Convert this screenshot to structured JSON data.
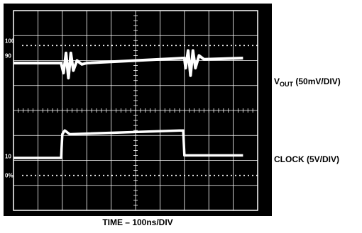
{
  "chart_data": {
    "type": "line",
    "title": "",
    "xlabel": "TIME – 100ns/DIV",
    "graticule": {
      "x_divisions": 10,
      "y_divisions": 8,
      "markers": [
        "100",
        "90",
        "10",
        "0%"
      ]
    },
    "colors": {
      "screen_background": "#000000",
      "grid": "#ffffff",
      "trace": "#ffffff"
    },
    "series": [
      {
        "name": "VOUT (50mV/DIV)",
        "units": "divisions above screen center",
        "points": [
          [
            0.0,
            1.9
          ],
          [
            1.95,
            1.9
          ],
          [
            2.05,
            1.5
          ],
          [
            2.15,
            2.3
          ],
          [
            2.25,
            1.3
          ],
          [
            2.35,
            2.3
          ],
          [
            2.45,
            1.6
          ],
          [
            2.6,
            2.0
          ],
          [
            2.8,
            1.85
          ],
          [
            3.0,
            1.9
          ],
          [
            7.0,
            2.1
          ],
          [
            7.05,
            1.7
          ],
          [
            7.15,
            2.4
          ],
          [
            7.25,
            1.4
          ],
          [
            7.35,
            2.4
          ],
          [
            7.45,
            1.7
          ],
          [
            7.6,
            2.2
          ],
          [
            7.8,
            2.05
          ],
          [
            9.4,
            2.1
          ]
        ]
      },
      {
        "name": "CLOCK (5V/DIV)",
        "units": "divisions above screen center",
        "points": [
          [
            0.0,
            -1.9
          ],
          [
            1.95,
            -1.9
          ],
          [
            2.0,
            -0.95
          ],
          [
            2.1,
            -0.8
          ],
          [
            2.3,
            -0.95
          ],
          [
            6.95,
            -0.8
          ],
          [
            7.0,
            -1.8
          ],
          [
            9.4,
            -1.8
          ]
        ]
      }
    ]
  },
  "labels": {
    "time": "TIME – 100ns/DIV",
    "vout_main": "V",
    "vout_sub": "OUT",
    "vout_scale": " (50mV/DIV)",
    "clock": "CLOCK (5V/DIV)"
  }
}
